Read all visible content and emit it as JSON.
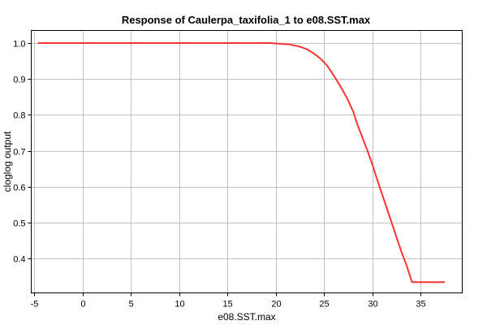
{
  "chart_data": {
    "type": "line",
    "title": "Response of Caulerpa_taxifolia_1 to e08.SST.max",
    "xlabel": "e08.SST.max",
    "ylabel": "cloglog output",
    "xlim": [
      -5.3,
      39.3
    ],
    "ylim": [
      0.305,
      1.035
    ],
    "xticks": [
      -5,
      0,
      5,
      10,
      15,
      20,
      25,
      30,
      35
    ],
    "yticks": [
      0.4,
      0.5,
      0.6,
      0.7,
      0.8,
      0.9,
      1.0
    ],
    "xtick_labels": [
      "-5",
      "0",
      "5",
      "10",
      "15",
      "20",
      "25",
      "30",
      "35"
    ],
    "ytick_labels": [
      "0.4",
      "0.5",
      "0.6",
      "0.7",
      "0.8",
      "0.9",
      "1.0"
    ],
    "grid": true,
    "series": [
      {
        "color": "#ff3333",
        "x": [
          -4.6,
          0,
          5,
          10,
          15,
          19.4,
          20.5,
          21.5,
          22.5,
          23.3,
          24.0,
          24.7,
          25.3,
          26.0,
          26.5,
          27.0,
          27.5,
          28.0,
          28.5,
          29.0,
          29.5,
          30.0,
          30.5,
          31.0,
          31.5,
          32.0,
          32.5,
          33.0,
          33.5,
          34.1,
          35.0,
          36.0,
          37.5
        ],
        "y": [
          1.0,
          1.0,
          1.0,
          1.0,
          1.0,
          1.0,
          0.998,
          0.996,
          0.99,
          0.982,
          0.97,
          0.955,
          0.938,
          0.91,
          0.888,
          0.865,
          0.84,
          0.81,
          0.77,
          0.735,
          0.7,
          0.662,
          0.62,
          0.58,
          0.54,
          0.5,
          0.46,
          0.42,
          0.385,
          0.335,
          0.335,
          0.335,
          0.335
        ]
      }
    ]
  }
}
